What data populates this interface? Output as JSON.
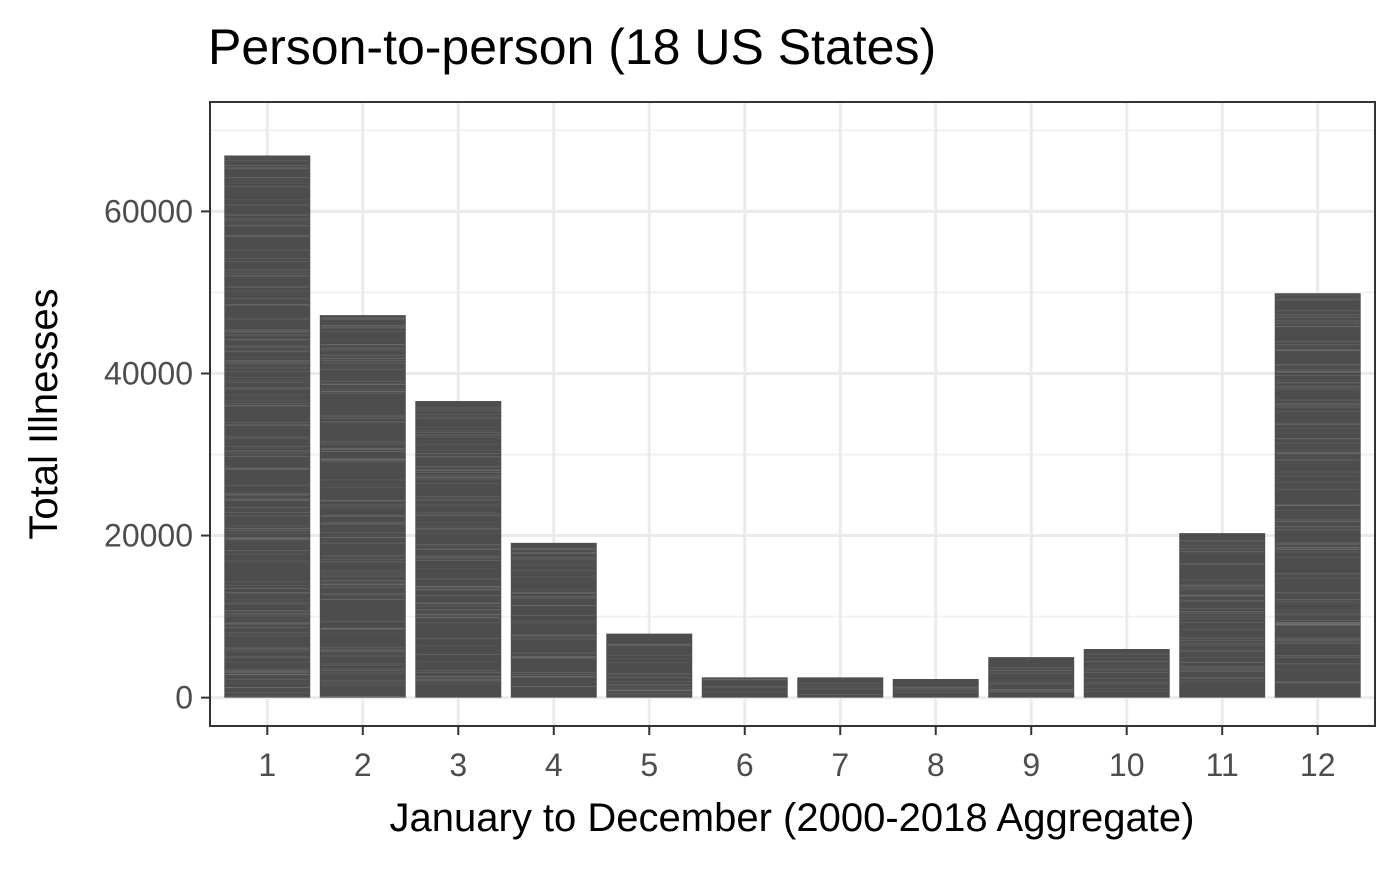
{
  "chart_data": {
    "type": "bar",
    "title": "Person-to-person (18 US States)",
    "xlabel": "January to December (2000-2018 Aggregate)",
    "ylabel": "Total Illnesses",
    "categories": [
      "1",
      "2",
      "3",
      "4",
      "5",
      "6",
      "7",
      "8",
      "9",
      "10",
      "11",
      "12"
    ],
    "values": [
      66900,
      47200,
      36600,
      19100,
      7900,
      2500,
      2500,
      2300,
      5000,
      6000,
      20300,
      49900
    ],
    "yticks": [
      0,
      20000,
      40000,
      60000
    ],
    "ytick_labels": [
      "0",
      "20000",
      "40000",
      "60000"
    ],
    "ylim": [
      -3500,
      73500
    ],
    "grid": true,
    "legend": "none",
    "colors": {
      "bar": "#4d4d4d",
      "bar_stripe": "#8a8a8a",
      "grid_major": "#ebebeb",
      "grid_minor": "#f2f2f2",
      "panel_border": "#333333",
      "tick_label": "#4d4d4d",
      "text": "#000000"
    }
  }
}
